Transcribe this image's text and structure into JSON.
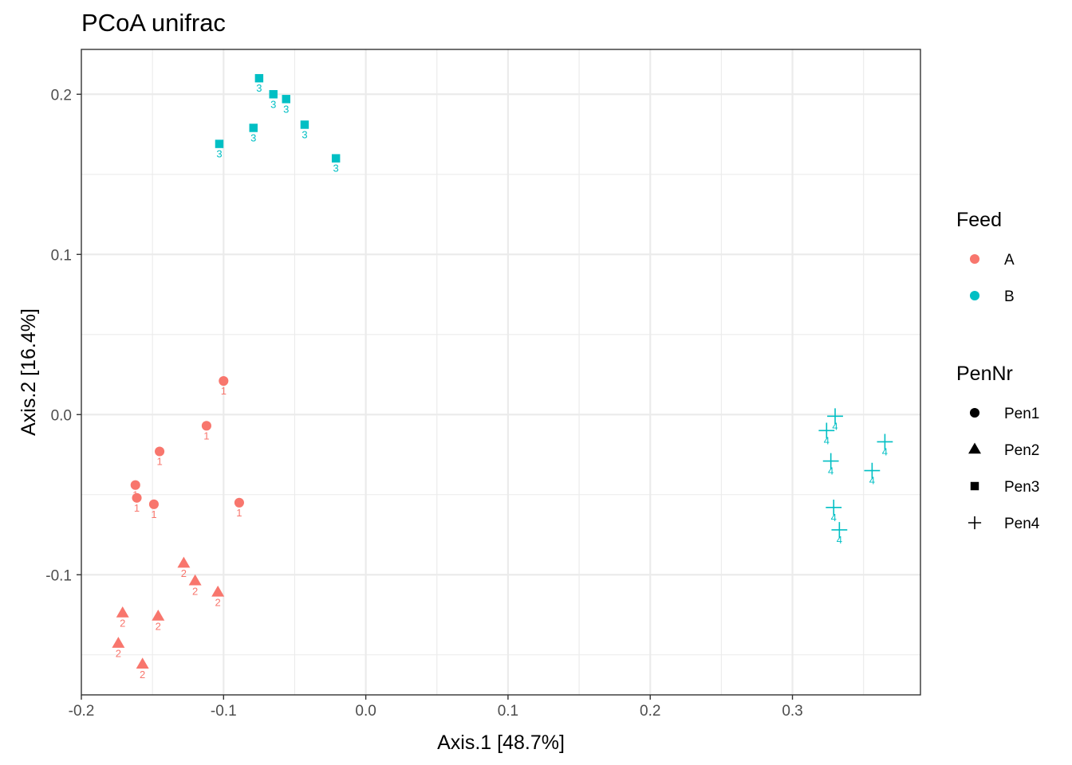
{
  "chart_data": {
    "type": "scatter",
    "title": "PCoA unifrac",
    "xlabel": "Axis.1   [48.7%]",
    "ylabel": "Axis.2   [16.4%]",
    "xlim": [
      -0.2,
      0.39
    ],
    "ylim": [
      -0.175,
      0.228
    ],
    "x_ticks": [
      -0.2,
      -0.1,
      0.0,
      0.1,
      0.2,
      0.3
    ],
    "x_tick_labels": [
      "-0.2",
      "-0.1",
      "0.0",
      "0.1",
      "0.2",
      "0.3"
    ],
    "y_ticks": [
      -0.1,
      0.0,
      0.1,
      0.2
    ],
    "y_tick_labels": [
      "-0.1",
      "0.0",
      "0.1",
      "0.2"
    ],
    "grid": true,
    "legend_placement": "right",
    "colors": {
      "A": "#F8766D",
      "B": "#00BFC4"
    },
    "legends": [
      {
        "title": "Feed",
        "entries": [
          {
            "label": "A",
            "shape": "circle",
            "color": "#F8766D"
          },
          {
            "label": "B",
            "shape": "circle",
            "color": "#00BFC4"
          }
        ]
      },
      {
        "title": "PenNr",
        "entries": [
          {
            "label": "Pen1",
            "shape": "circle",
            "color": "#000000"
          },
          {
            "label": "Pen2",
            "shape": "triangle",
            "color": "#000000"
          },
          {
            "label": "Pen3",
            "shape": "square",
            "color": "#000000"
          },
          {
            "label": "Pen4",
            "shape": "plus",
            "color": "#000000"
          }
        ]
      }
    ],
    "series": [
      {
        "feed": "A",
        "pen": "Pen1",
        "shape": "circle",
        "point_label": "1",
        "points": [
          [
            -0.1,
            0.021
          ],
          [
            -0.112,
            -0.007
          ],
          [
            -0.145,
            -0.023
          ],
          [
            -0.162,
            -0.044
          ],
          [
            -0.161,
            -0.052
          ],
          [
            -0.149,
            -0.056
          ],
          [
            -0.089,
            -0.055
          ]
        ]
      },
      {
        "feed": "A",
        "pen": "Pen2",
        "shape": "triangle",
        "point_label": "2",
        "points": [
          [
            -0.128,
            -0.093
          ],
          [
            -0.12,
            -0.104
          ],
          [
            -0.104,
            -0.111
          ],
          [
            -0.171,
            -0.124
          ],
          [
            -0.146,
            -0.126
          ],
          [
            -0.174,
            -0.143
          ],
          [
            -0.157,
            -0.156
          ]
        ]
      },
      {
        "feed": "B",
        "pen": "Pen3",
        "shape": "square",
        "point_label": "3",
        "points": [
          [
            -0.075,
            0.21
          ],
          [
            -0.065,
            0.2
          ],
          [
            -0.056,
            0.197
          ],
          [
            -0.079,
            0.179
          ],
          [
            -0.043,
            0.181
          ],
          [
            -0.103,
            0.169
          ],
          [
            -0.021,
            0.16
          ]
        ]
      },
      {
        "feed": "B",
        "pen": "Pen4",
        "shape": "plus",
        "point_label": "4",
        "points": [
          [
            0.33,
            -0.001
          ],
          [
            0.324,
            -0.01
          ],
          [
            0.365,
            -0.017
          ],
          [
            0.327,
            -0.029
          ],
          [
            0.356,
            -0.035
          ],
          [
            0.329,
            -0.058
          ],
          [
            0.333,
            -0.072
          ]
        ]
      }
    ]
  }
}
